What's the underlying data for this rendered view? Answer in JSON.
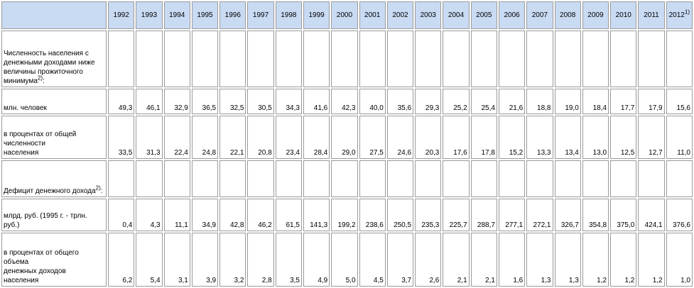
{
  "table": {
    "years": [
      "1992",
      "1993",
      "1994",
      "1995",
      "1996",
      "1997",
      "1998",
      "1999",
      "2000",
      "2001",
      "2002",
      "2003",
      "2004",
      "2005",
      "2006",
      "2007",
      "2008",
      "2009",
      "2010",
      "2011",
      "2012"
    ],
    "last_year_note": "1)",
    "sections": [
      {
        "title": "Численность населения с денежными доходами ниже величины прожиточного минимума",
        "note": "2)",
        "title_suffix": ":",
        "rows": [
          {
            "label": "   млн. человек",
            "values": [
              "49,3",
              "46,1",
              "32,9",
              "36,5",
              "32,5",
              "30,5",
              "34,3",
              "41,6",
              "42,3",
              "40,0",
              "35,6",
              "29,3",
              "25,2",
              "25,4",
              "21,6",
              "18,8",
              "19,0",
              "18,4",
              "17,7",
              "17,9",
              "15,6"
            ]
          },
          {
            "label": "   в процентах от общей\n   численности\n   населения",
            "values": [
              "33,5",
              "31,3",
              "22,4",
              "24,8",
              "22,1",
              "20,8",
              "23,4",
              "28,4",
              "29,0",
              "27,5",
              "24,6",
              "20,3",
              "17,6",
              "17,8",
              "15,2",
              "13,3",
              "13,4",
              "13,0",
              "12,5",
              "12,7",
              "11,0"
            ]
          }
        ]
      },
      {
        "title": "Дефицит денежного дохода",
        "note": "2)",
        "title_suffix": ":",
        "rows": [
          {
            "label": "   млрд. руб. (1995 г. - трлн. руб.)",
            "values": [
              "0,4",
              "4,3",
              "11,1",
              "34,9",
              "42,8",
              "46,2",
              "61,5",
              "141,3",
              "199,2",
              "238,6",
              "250,5",
              "235,3",
              "225,7",
              "288,7",
              "277,1",
              "272,1",
              "326,7",
              "354,8",
              "375,0",
              "424,1",
              "376,6"
            ]
          },
          {
            "label": "   в процентах от общего\nобъема\n   денежных доходов\nнаселения",
            "values": [
              "6,2",
              "5,4",
              "3,1",
              "3,9",
              "3,2",
              "2,8",
              "3,5",
              "4,9",
              "5,0",
              "4,5",
              "3,7",
              "2,6",
              "2,1",
              "2,1",
              "1,6",
              "1,3",
              "1,3",
              "1,2",
              "1,2",
              "1,2",
              "1,0"
            ]
          }
        ]
      }
    ]
  },
  "colors": {
    "header_background": "#c9daf3",
    "cell_border": "#9a9a9a"
  }
}
